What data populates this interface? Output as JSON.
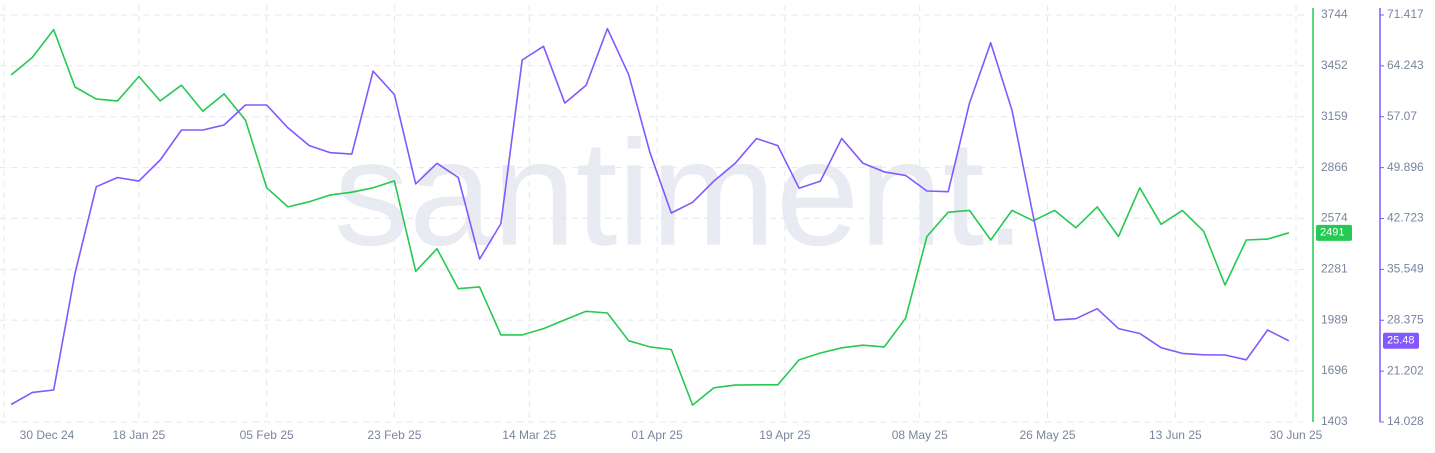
{
  "chart_data": {
    "type": "line",
    "watermark": "santiment.",
    "x": [
      "2024-12-31",
      "2025-01-03",
      "2025-01-06",
      "2025-01-09",
      "2025-01-12",
      "2025-01-15",
      "2025-01-18",
      "2025-01-21",
      "2025-01-24",
      "2025-01-27",
      "2025-01-30",
      "2025-02-02",
      "2025-02-05",
      "2025-02-08",
      "2025-02-11",
      "2025-02-14",
      "2025-02-17",
      "2025-02-20",
      "2025-02-23",
      "2025-02-26",
      "2025-03-01",
      "2025-03-04",
      "2025-03-07",
      "2025-03-10",
      "2025-03-13",
      "2025-03-16",
      "2025-03-19",
      "2025-03-22",
      "2025-03-25",
      "2025-03-28",
      "2025-03-31",
      "2025-04-03",
      "2025-04-06",
      "2025-04-09",
      "2025-04-12",
      "2025-04-15",
      "2025-04-18",
      "2025-04-21",
      "2025-04-24",
      "2025-04-27",
      "2025-04-30",
      "2025-05-03",
      "2025-05-06",
      "2025-05-09",
      "2025-05-12",
      "2025-05-15",
      "2025-05-18",
      "2025-05-21",
      "2025-05-24",
      "2025-05-27",
      "2025-05-30",
      "2025-06-02",
      "2025-06-05",
      "2025-06-08",
      "2025-06-11",
      "2025-06-14",
      "2025-06-17",
      "2025-06-20",
      "2025-06-23",
      "2025-06-26",
      "2025-06-29"
    ],
    "xlim": [
      "2024-12-30",
      "2025-06-30"
    ],
    "xticks": [
      {
        "value": "2024-12-30",
        "label": "30 Dec 24"
      },
      {
        "value": "2025-01-18",
        "label": "18 Jan 25"
      },
      {
        "value": "2025-02-05",
        "label": "05 Feb 25"
      },
      {
        "value": "2025-02-23",
        "label": "23 Feb 25"
      },
      {
        "value": "2025-03-14",
        "label": "14 Mar 25"
      },
      {
        "value": "2025-04-01",
        "label": "01 Apr 25"
      },
      {
        "value": "2025-04-19",
        "label": "19 Apr 25"
      },
      {
        "value": "2025-05-08",
        "label": "08 May 25"
      },
      {
        "value": "2025-05-26",
        "label": "26 May 25"
      },
      {
        "value": "2025-06-13",
        "label": "13 Jun 25"
      },
      {
        "value": "2025-06-30",
        "label": "30 Jun 25"
      }
    ],
    "ylim": [
      1403,
      3744
    ],
    "yticks": [
      3744,
      3452,
      3159,
      2866,
      2574,
      2281,
      1989,
      1696,
      1403
    ],
    "y2lim": [
      14.028,
      71.417
    ],
    "y2ticks": [
      71.417,
      64.243,
      57.07,
      49.896,
      42.723,
      35.549,
      28.375,
      21.202,
      14.028
    ],
    "grid": true,
    "series": [
      {
        "color": "#26c953",
        "axis": "y",
        "values": [
          3399,
          3500,
          3660,
          3330,
          3260,
          3250,
          3390,
          3250,
          3340,
          3190,
          3290,
          3140,
          2750,
          2640,
          2670,
          2709,
          2725,
          2750,
          2790,
          2270,
          2400,
          2170,
          2180,
          1904,
          1904,
          1940,
          1990,
          2040,
          2030,
          1870,
          1835,
          1820,
          1500,
          1600,
          1615,
          1617,
          1617,
          1760,
          1800,
          1830,
          1845,
          1835,
          2000,
          2470,
          2610,
          2620,
          2450,
          2620,
          2560,
          2620,
          2520,
          2640,
          2470,
          2750,
          2540,
          2620,
          2500,
          2191,
          2450,
          2455,
          2491
        ]
      },
      {
        "color": "#8358ff",
        "axis": "y2",
        "values": [
          16.5,
          18.2,
          18.54,
          35,
          47.2,
          48.5,
          48,
          50.97,
          55.2,
          55.2,
          55.9,
          58.73,
          58.73,
          55.5,
          53,
          52,
          51.8,
          63.5,
          60.2,
          47.6,
          50.5,
          48.5,
          37,
          42,
          65.07,
          67,
          59,
          61.5,
          69.5,
          63,
          52,
          43.5,
          45,
          48,
          50.5,
          54,
          53,
          47,
          48,
          54,
          50.5,
          49.3,
          48.8,
          46.6,
          46.5,
          59,
          67.5,
          58,
          43,
          28.4,
          28.6,
          30,
          27.2,
          26.5,
          24.5,
          23.7,
          23.5,
          23.47,
          22.8,
          27,
          25.48
        ]
      }
    ]
  }
}
